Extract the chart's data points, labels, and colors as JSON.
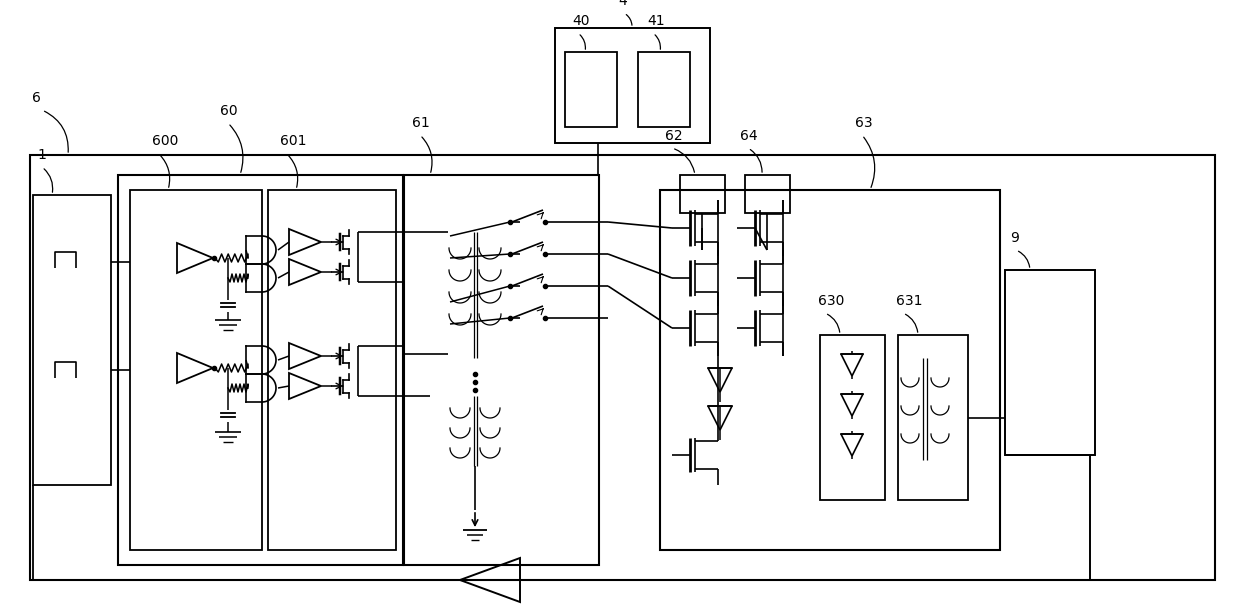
{
  "bg_color": "#ffffff",
  "lw": 1.3,
  "fig_w": 12.39,
  "fig_h": 6.1
}
